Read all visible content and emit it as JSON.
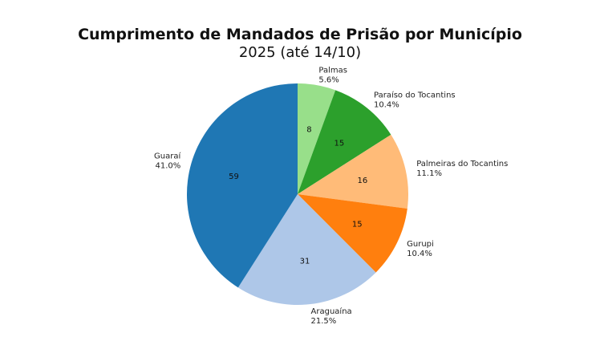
{
  "chart_data": {
    "type": "pie",
    "title": "Cumprimento de Mandados de Prisão por Município",
    "subtitle": "2025 (até 14/10)",
    "start": "top",
    "direction": "clockwise",
    "slices": [
      {
        "label": "Palmas",
        "value": 8,
        "percent": "5.6%",
        "color": "#98df8a"
      },
      {
        "label": "Paraíso do Tocantins",
        "value": 15,
        "percent": "10.4%",
        "color": "#2ca02c"
      },
      {
        "label": "Palmeiras do Tocantins",
        "value": 16,
        "percent": "11.1%",
        "color": "#ffbb78"
      },
      {
        "label": "Gurupi",
        "value": 15,
        "percent": "10.4%",
        "color": "#ff7f0e"
      },
      {
        "label": "Araguaína",
        "value": 31,
        "percent": "21.5%",
        "color": "#aec7e8"
      },
      {
        "label": "Guaraí",
        "value": 59,
        "percent": "41.0%",
        "color": "#1f77b4"
      }
    ]
  }
}
